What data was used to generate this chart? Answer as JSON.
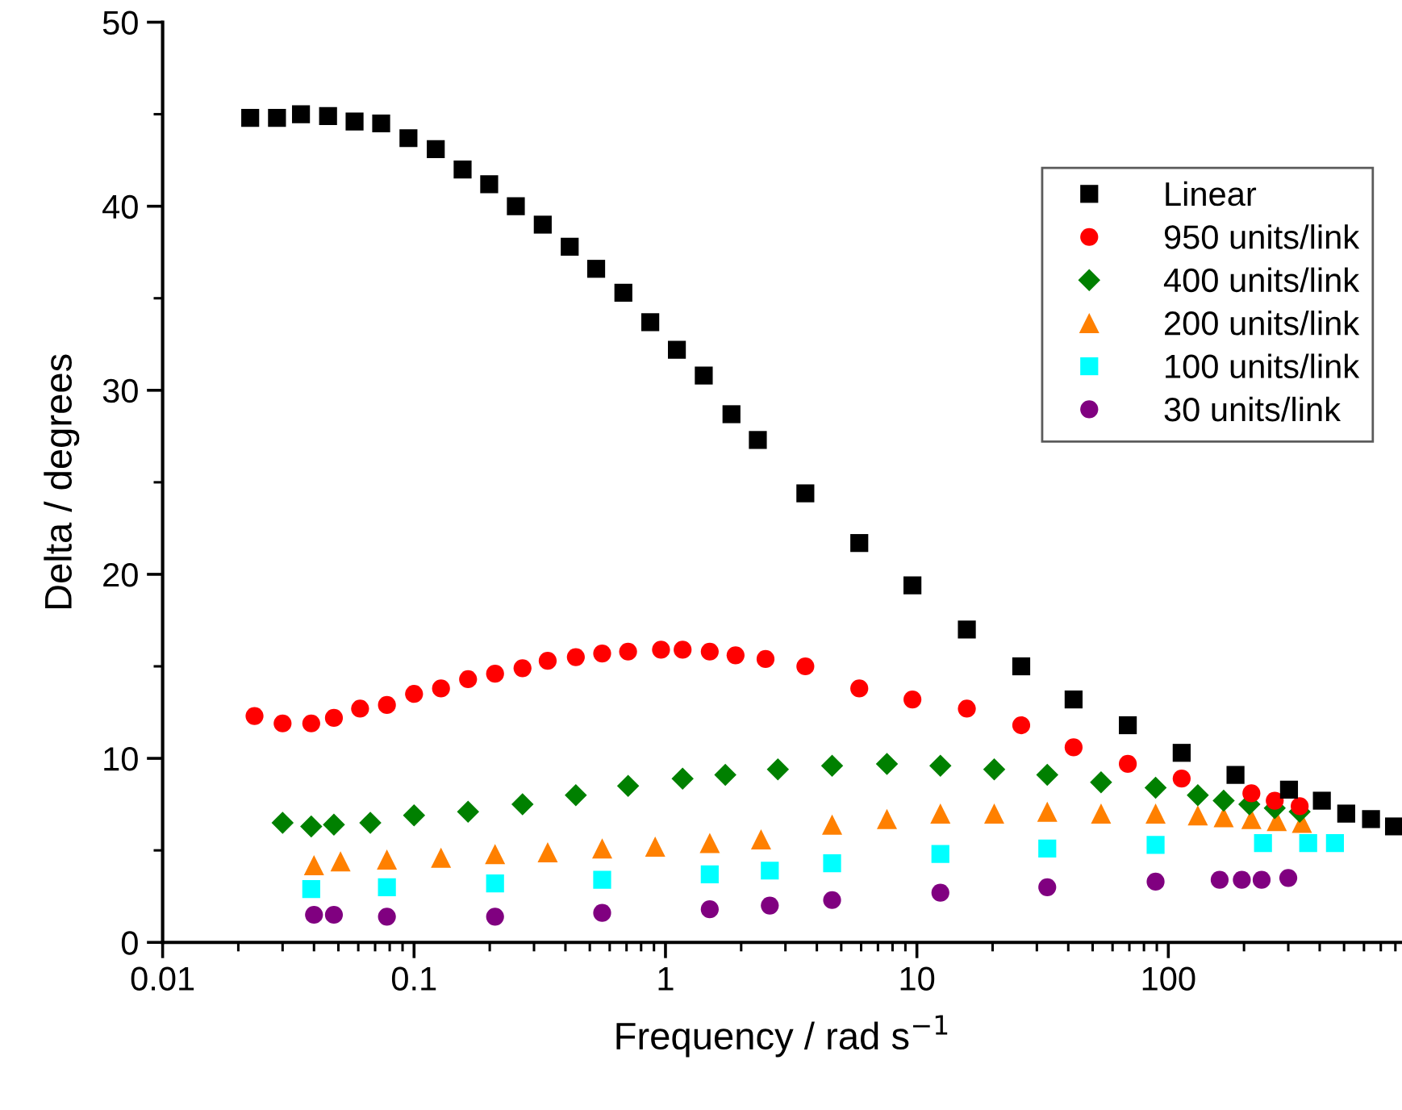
{
  "chart_data": {
    "type": "scatter",
    "xlabel": "Frequency / rad s$^{−1}$",
    "ylabel": "Delta / degrees",
    "log": "x",
    "xlim": [
      0.01,
      850
    ],
    "xticks": [
      0.01,
      0.1,
      1,
      10,
      100
    ],
    "ylim": [
      0,
      50
    ],
    "yticks": [
      0,
      10,
      20,
      30,
      40,
      50
    ],
    "grid": false,
    "legend": "top right",
    "series": [
      {
        "name": "Linear",
        "color": "#000000",
        "marker": "square",
        "x": [
          0.0223,
          0.0285,
          0.0355,
          0.0455,
          0.058,
          0.074,
          0.095,
          0.122,
          0.156,
          0.199,
          0.254,
          0.325,
          0.416,
          0.53,
          0.68,
          0.87,
          1.11,
          1.42,
          1.83,
          2.33,
          3.6,
          5.9,
          9.6,
          15.8,
          26,
          42,
          69,
          113,
          185,
          302,
          408,
          510,
          640,
          790
        ],
        "values": [
          44.8,
          44.8,
          45.0,
          44.9,
          44.6,
          44.5,
          43.7,
          43.1,
          42.0,
          41.2,
          40.0,
          39.0,
          37.8,
          36.6,
          35.3,
          33.7,
          32.2,
          30.8,
          28.7,
          27.3,
          24.4,
          21.7,
          19.4,
          17.0,
          15.0,
          13.2,
          11.8,
          10.3,
          9.1,
          8.3,
          7.7,
          7.0,
          6.7,
          6.3
        ]
      },
      {
        "name": "950 units/link",
        "color": "#ff0000",
        "marker": "circle",
        "x": [
          0.0232,
          0.03,
          0.039,
          0.048,
          0.061,
          0.078,
          0.1,
          0.128,
          0.164,
          0.21,
          0.27,
          0.34,
          0.44,
          0.56,
          0.71,
          0.96,
          1.17,
          1.5,
          1.9,
          2.5,
          3.6,
          5.9,
          9.6,
          15.8,
          26,
          42,
          69,
          113,
          214,
          265,
          333
        ],
        "values": [
          12.3,
          11.9,
          11.9,
          12.2,
          12.7,
          12.9,
          13.5,
          13.8,
          14.3,
          14.6,
          14.9,
          15.3,
          15.5,
          15.7,
          15.8,
          15.9,
          15.9,
          15.8,
          15.6,
          15.4,
          15.0,
          13.8,
          13.2,
          12.7,
          11.8,
          10.6,
          9.7,
          8.9,
          8.1,
          7.7,
          7.4
        ]
      },
      {
        "name": "400 units/link",
        "color": "#008000",
        "marker": "diamond",
        "x": [
          0.03,
          0.039,
          0.048,
          0.067,
          0.1,
          0.164,
          0.27,
          0.44,
          0.71,
          1.17,
          1.73,
          2.8,
          4.6,
          7.6,
          12.4,
          20.3,
          33,
          54,
          89,
          131,
          166,
          210,
          265,
          333
        ],
        "values": [
          6.5,
          6.3,
          6.4,
          6.5,
          6.9,
          7.1,
          7.5,
          8.0,
          8.5,
          8.9,
          9.1,
          9.4,
          9.6,
          9.7,
          9.6,
          9.4,
          9.1,
          8.7,
          8.4,
          8.0,
          7.7,
          7.5,
          7.3,
          7.1
        ]
      },
      {
        "name": "200 units/link",
        "color": "#ff8000",
        "marker": "triangle",
        "x": [
          0.04,
          0.051,
          0.078,
          0.128,
          0.21,
          0.34,
          0.56,
          0.91,
          1.5,
          2.4,
          4.6,
          7.6,
          12.4,
          20.3,
          33,
          54,
          89,
          131,
          166,
          214,
          270,
          340
        ],
        "values": [
          4.2,
          4.4,
          4.5,
          4.6,
          4.8,
          4.9,
          5.1,
          5.2,
          5.4,
          5.6,
          6.4,
          6.7,
          7.0,
          7.0,
          7.1,
          7.0,
          7.0,
          6.9,
          6.8,
          6.7,
          6.6,
          6.5
        ]
      },
      {
        "name": "100 units/link",
        "color": "#00ffff",
        "marker": "square",
        "x": [
          0.039,
          0.078,
          0.21,
          0.56,
          1.5,
          2.6,
          4.6,
          12.4,
          33,
          89,
          238,
          360,
          460
        ],
        "values": [
          2.9,
          3.0,
          3.2,
          3.4,
          3.7,
          3.9,
          4.3,
          4.8,
          5.1,
          5.3,
          5.4,
          5.4,
          5.4
        ]
      },
      {
        "name": "30 units/link",
        "color": "#800080",
        "marker": "circle",
        "x": [
          0.04,
          0.048,
          0.078,
          0.21,
          0.56,
          1.5,
          2.6,
          4.6,
          12.4,
          33,
          89,
          160,
          196,
          235,
          300
        ],
        "values": [
          1.5,
          1.5,
          1.4,
          1.4,
          1.6,
          1.8,
          2.0,
          2.3,
          2.7,
          3.0,
          3.3,
          3.4,
          3.4,
          3.4,
          3.5
        ]
      }
    ]
  }
}
